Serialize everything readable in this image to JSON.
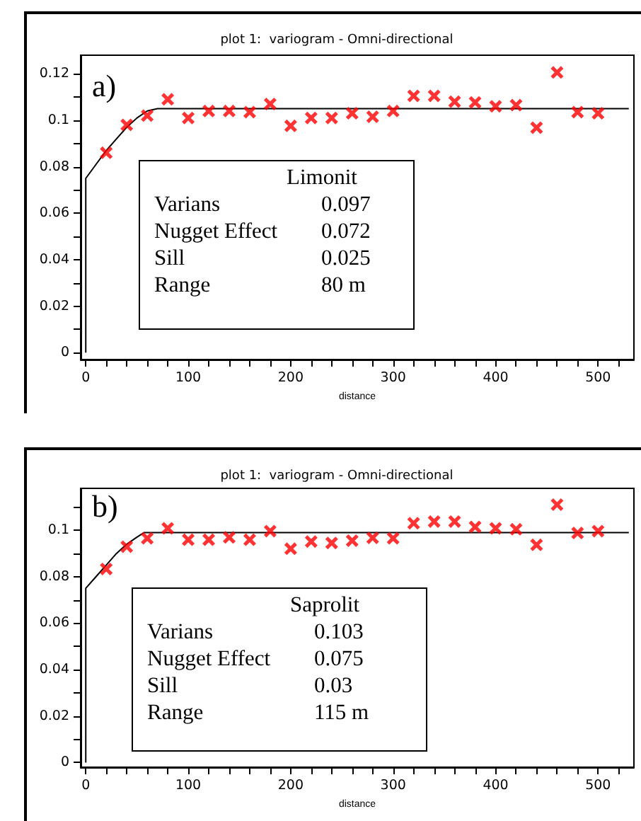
{
  "chart_data": [
    {
      "type": "scatter",
      "title": "plot 1:  variogram - Omni-directional",
      "xlabel": "distance",
      "annotations": [
        "a)",
        "Limonit",
        "Varians",
        "0.097",
        "Nugget Effect",
        "0.072",
        "Sill",
        "0.025",
        "Range",
        "80 m"
      ],
      "x": [
        20,
        40,
        60,
        80,
        100,
        120,
        140,
        160,
        180,
        200,
        220,
        240,
        260,
        280,
        300,
        320,
        340,
        360,
        380,
        400,
        420,
        440,
        460,
        480,
        500
      ],
      "xlim": [
        -5,
        535
      ],
      "xticks": [
        0,
        {
          "value": 20,
          "label": null
        },
        {
          "value": 40,
          "label": null
        },
        {
          "value": 60,
          "label": null
        },
        {
          "value": 80,
          "label": null
        },
        100,
        {
          "value": 120,
          "label": null
        },
        {
          "value": 140,
          "label": null
        },
        {
          "value": 160,
          "label": null
        },
        {
          "value": 180,
          "label": null
        },
        200,
        {
          "value": 220,
          "label": null
        },
        {
          "value": 240,
          "label": null
        },
        {
          "value": 260,
          "label": null
        },
        {
          "value": 280,
          "label": null
        },
        300,
        {
          "value": 320,
          "label": null
        },
        {
          "value": 340,
          "label": null
        },
        {
          "value": 360,
          "label": null
        },
        {
          "value": 380,
          "label": null
        },
        400,
        {
          "value": 420,
          "label": null
        },
        {
          "value": 440,
          "label": null
        },
        {
          "value": 460,
          "label": null
        },
        {
          "value": 480,
          "label": null
        },
        500,
        {
          "value": 520,
          "label": null
        }
      ],
      "ylim": [
        -0.003,
        0.128
      ],
      "yticks": [
        0,
        {
          "value": 0.01,
          "label": null
        },
        0.02,
        {
          "value": 0.03,
          "label": null
        },
        0.04,
        {
          "value": 0.05,
          "label": null
        },
        0.06,
        {
          "value": 0.07,
          "label": null
        },
        0.08,
        {
          "value": 0.09,
          "label": null
        },
        0.1,
        {
          "value": 0.11,
          "label": null
        },
        0.12
      ],
      "series": [
        {
          "type": "scatter",
          "marker": "cross",
          "color": "#ff0000",
          "values": [
            0.086,
            0.098,
            0.102,
            0.109,
            0.101,
            0.104,
            0.104,
            0.1035,
            0.107,
            0.0976,
            0.101,
            0.101,
            0.103,
            0.1015,
            0.104,
            0.1105,
            0.1105,
            0.108,
            0.1077,
            0.106,
            0.1065,
            0.0968,
            0.1206,
            0.1035,
            0.103
          ]
        },
        {
          "type": "line",
          "marker": "none",
          "color": "#000000",
          "x": [
            0,
            0,
            10,
            20,
            30,
            40,
            50,
            60,
            70,
            530
          ],
          "values": [
            0,
            0.075,
            0.081,
            0.087,
            0.092,
            0.097,
            0.101,
            0.104,
            0.105,
            0.105
          ]
        }
      ]
    },
    {
      "type": "scatter",
      "title": "plot 1:  variogram - Omni-directional",
      "xlabel": "distance",
      "annotations": [
        "b)",
        "Saprolit",
        "Varians",
        "0.103",
        "Nugget Effect",
        "0.075",
        "Sill",
        "0.03",
        "Range",
        "115 m"
      ],
      "x": [
        20,
        40,
        60,
        80,
        100,
        120,
        140,
        160,
        180,
        200,
        220,
        240,
        260,
        280,
        300,
        320,
        340,
        360,
        380,
        400,
        420,
        440,
        460,
        480,
        500
      ],
      "xlim": [
        -5,
        535
      ],
      "xticks": [
        0,
        {
          "value": 20,
          "label": null
        },
        {
          "value": 40,
          "label": null
        },
        {
          "value": 60,
          "label": null
        },
        {
          "value": 80,
          "label": null
        },
        100,
        {
          "value": 120,
          "label": null
        },
        {
          "value": 140,
          "label": null
        },
        {
          "value": 160,
          "label": null
        },
        {
          "value": 180,
          "label": null
        },
        200,
        {
          "value": 220,
          "label": null
        },
        {
          "value": 240,
          "label": null
        },
        {
          "value": 260,
          "label": null
        },
        {
          "value": 280,
          "label": null
        },
        300,
        {
          "value": 320,
          "label": null
        },
        {
          "value": 340,
          "label": null
        },
        {
          "value": 360,
          "label": null
        },
        {
          "value": 380,
          "label": null
        },
        400,
        {
          "value": 420,
          "label": null
        },
        {
          "value": 440,
          "label": null
        },
        {
          "value": 460,
          "label": null
        },
        {
          "value": 480,
          "label": null
        },
        500,
        {
          "value": 520,
          "label": null
        }
      ],
      "ylim": [
        -0.002,
        0.118
      ],
      "yticks": [
        0,
        {
          "value": 0.01,
          "label": null
        },
        0.02,
        {
          "value": 0.03,
          "label": null
        },
        0.04,
        {
          "value": 0.05,
          "label": null
        },
        0.06,
        {
          "value": 0.07,
          "label": null
        },
        0.08,
        {
          "value": 0.09,
          "label": null
        },
        0.1,
        {
          "value": 0.11,
          "label": null
        }
      ],
      "series": [
        {
          "type": "scatter",
          "marker": "cross",
          "color": "#ff0000",
          "values": [
            0.0833,
            0.0929,
            0.0965,
            0.1008,
            0.0959,
            0.0959,
            0.0969,
            0.0959,
            0.0996,
            0.092,
            0.0951,
            0.0945,
            0.0955,
            0.0967,
            0.0965,
            0.103,
            0.1037,
            0.1037,
            0.1014,
            0.1008,
            0.1004,
            0.0937,
            0.111,
            0.0988,
            0.0996
          ]
        },
        {
          "type": "line",
          "marker": "none",
          "color": "#000000",
          "x": [
            0,
            0,
            10,
            20,
            30,
            40,
            50,
            57,
            530
          ],
          "values": [
            0,
            0.075,
            0.08,
            0.085,
            0.09,
            0.094,
            0.097,
            0.099,
            0.099
          ]
        }
      ]
    }
  ]
}
